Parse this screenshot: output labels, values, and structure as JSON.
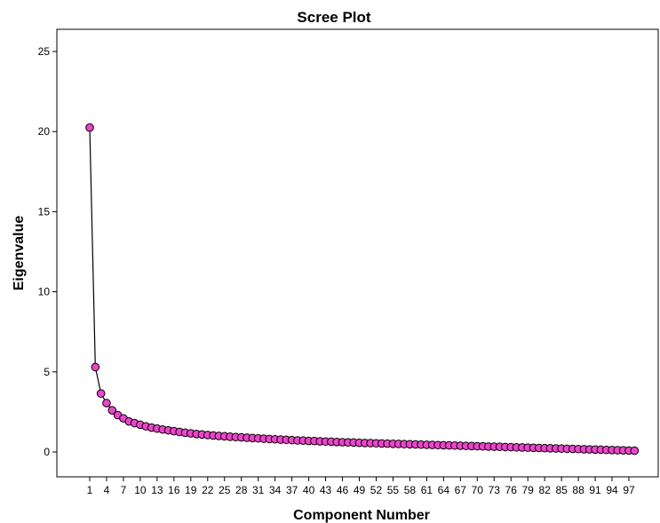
{
  "chart_data": {
    "type": "line",
    "title": "Scree Plot",
    "xlabel": "Component Number",
    "ylabel": "Eigenvalue",
    "xlim": [
      1,
      98
    ],
    "ylim": [
      0,
      25
    ],
    "yticks": [
      0,
      5,
      10,
      15,
      20,
      25
    ],
    "xticks": [
      1,
      4,
      7,
      10,
      13,
      16,
      19,
      22,
      25,
      28,
      31,
      34,
      37,
      40,
      43,
      46,
      49,
      52,
      55,
      58,
      61,
      64,
      67,
      70,
      73,
      76,
      79,
      82,
      85,
      88,
      91,
      94,
      97
    ],
    "grid": false,
    "marker_color": "#ee44cc",
    "marker_edge": "#000000",
    "line_color": "#000000",
    "series": [
      {
        "x": [
          1,
          2,
          3,
          4,
          5,
          6,
          7,
          8,
          9,
          10,
          11,
          12,
          13,
          14,
          15,
          16,
          17,
          18,
          19,
          20,
          21,
          22,
          23,
          24,
          25,
          26,
          27,
          28,
          29,
          30,
          31,
          32,
          33,
          34,
          35,
          36,
          37,
          38,
          39,
          40,
          41,
          42,
          43,
          44,
          45,
          46,
          47,
          48,
          49,
          50,
          51,
          52,
          53,
          54,
          55,
          56,
          57,
          58,
          59,
          60,
          61,
          62,
          63,
          64,
          65,
          66,
          67,
          68,
          69,
          70,
          71,
          72,
          73,
          74,
          75,
          76,
          77,
          78,
          79,
          80,
          81,
          82,
          83,
          84,
          85,
          86,
          87,
          88,
          89,
          90,
          91,
          92,
          93,
          94,
          95,
          96,
          97,
          98
        ],
        "values": [
          20.25,
          5.3,
          3.65,
          3.05,
          2.6,
          2.3,
          2.1,
          1.9,
          1.8,
          1.7,
          1.6,
          1.52,
          1.46,
          1.4,
          1.35,
          1.3,
          1.25,
          1.2,
          1.16,
          1.12,
          1.09,
          1.06,
          1.03,
          1.0,
          0.98,
          0.95,
          0.93,
          0.91,
          0.89,
          0.87,
          0.85,
          0.83,
          0.81,
          0.79,
          0.77,
          0.76,
          0.74,
          0.72,
          0.71,
          0.69,
          0.68,
          0.66,
          0.65,
          0.64,
          0.62,
          0.61,
          0.6,
          0.59,
          0.57,
          0.56,
          0.55,
          0.54,
          0.53,
          0.52,
          0.51,
          0.5,
          0.49,
          0.48,
          0.47,
          0.46,
          0.45,
          0.44,
          0.43,
          0.42,
          0.41,
          0.4,
          0.39,
          0.38,
          0.37,
          0.36,
          0.35,
          0.34,
          0.33,
          0.32,
          0.31,
          0.3,
          0.29,
          0.28,
          0.27,
          0.26,
          0.25,
          0.24,
          0.23,
          0.22,
          0.21,
          0.2,
          0.19,
          0.18,
          0.17,
          0.16,
          0.15,
          0.14,
          0.13,
          0.12,
          0.11,
          0.1,
          0.09,
          0.08
        ]
      }
    ]
  }
}
